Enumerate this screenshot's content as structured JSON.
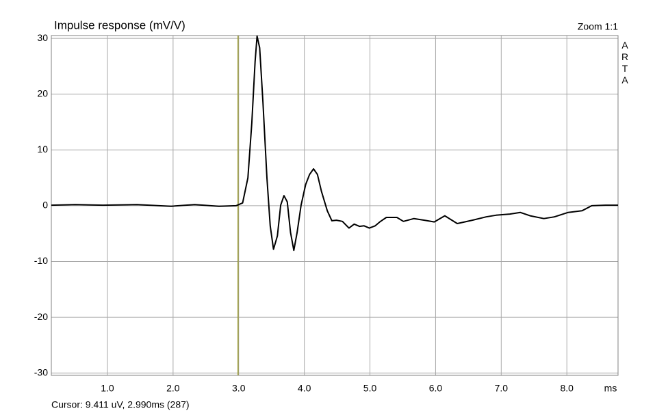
{
  "chart_data": {
    "type": "line",
    "title": "Impulse response (mV/V)",
    "zoom": "Zoom 1:1",
    "watermark": "ARTA",
    "x_label": "ms",
    "cursor": {
      "label": "Cursor: 9.411 uV, 2.990ms (287)",
      "x": 2.99,
      "color": "#9a9a2c"
    },
    "xlim": [
      0.145,
      8.78
    ],
    "ylim": [
      -30.4,
      30.5
    ],
    "xticks": [
      {
        "value": 1,
        "label": "1.0"
      },
      {
        "value": 2,
        "label": "2.0"
      },
      {
        "value": 3,
        "label": "3.0"
      },
      {
        "value": 4,
        "label": "4.0"
      },
      {
        "value": 5,
        "label": "5.0"
      },
      {
        "value": 6,
        "label": "6.0"
      },
      {
        "value": 7,
        "label": "7.0"
      },
      {
        "value": 8,
        "label": "8.0"
      }
    ],
    "yticks": [
      -30,
      -20,
      -10,
      0,
      10,
      20,
      30
    ],
    "grid": true,
    "series": [
      {
        "color": "#000000",
        "x": [
          0.145,
          0.51,
          0.93,
          1.45,
          1.97,
          2.33,
          2.7,
          2.96,
          3.06,
          3.14,
          3.2,
          3.25,
          3.28,
          3.32,
          3.37,
          3.43,
          3.48,
          3.53,
          3.59,
          3.64,
          3.69,
          3.74,
          3.79,
          3.84,
          3.89,
          3.95,
          4.02,
          4.08,
          4.14,
          4.2,
          4.26,
          4.35,
          4.42,
          4.49,
          4.58,
          4.68,
          4.76,
          4.84,
          4.91,
          4.99,
          5.08,
          5.15,
          5.25,
          5.41,
          5.51,
          5.67,
          5.83,
          5.98,
          6.14,
          6.33,
          6.56,
          6.77,
          6.92,
          7.13,
          7.29,
          7.44,
          7.65,
          7.81,
          8.02,
          8.23,
          8.38,
          8.59,
          8.78
        ],
        "values": [
          0.1,
          0.2,
          0.1,
          0.2,
          -0.1,
          0.2,
          -0.1,
          0,
          0.5,
          5,
          14.8,
          25.8,
          30.4,
          28.3,
          18.5,
          5,
          -3.6,
          -7.8,
          -5.4,
          0.1,
          1.8,
          0.7,
          -4.8,
          -8,
          -4.8,
          0.1,
          3.8,
          5.6,
          6.6,
          5.6,
          2.6,
          -0.9,
          -2.7,
          -2.6,
          -2.8,
          -4,
          -3.3,
          -3.7,
          -3.6,
          -4,
          -3.6,
          -2.9,
          -2.1,
          -2.1,
          -2.8,
          -2.3,
          -2.6,
          -2.9,
          -1.8,
          -3.2,
          -2.6,
          -2,
          -1.7,
          -1.5,
          -1.2,
          -1.8,
          -2.3,
          -2,
          -1.2,
          -0.9,
          0,
          0.1,
          0.1
        ]
      }
    ]
  }
}
